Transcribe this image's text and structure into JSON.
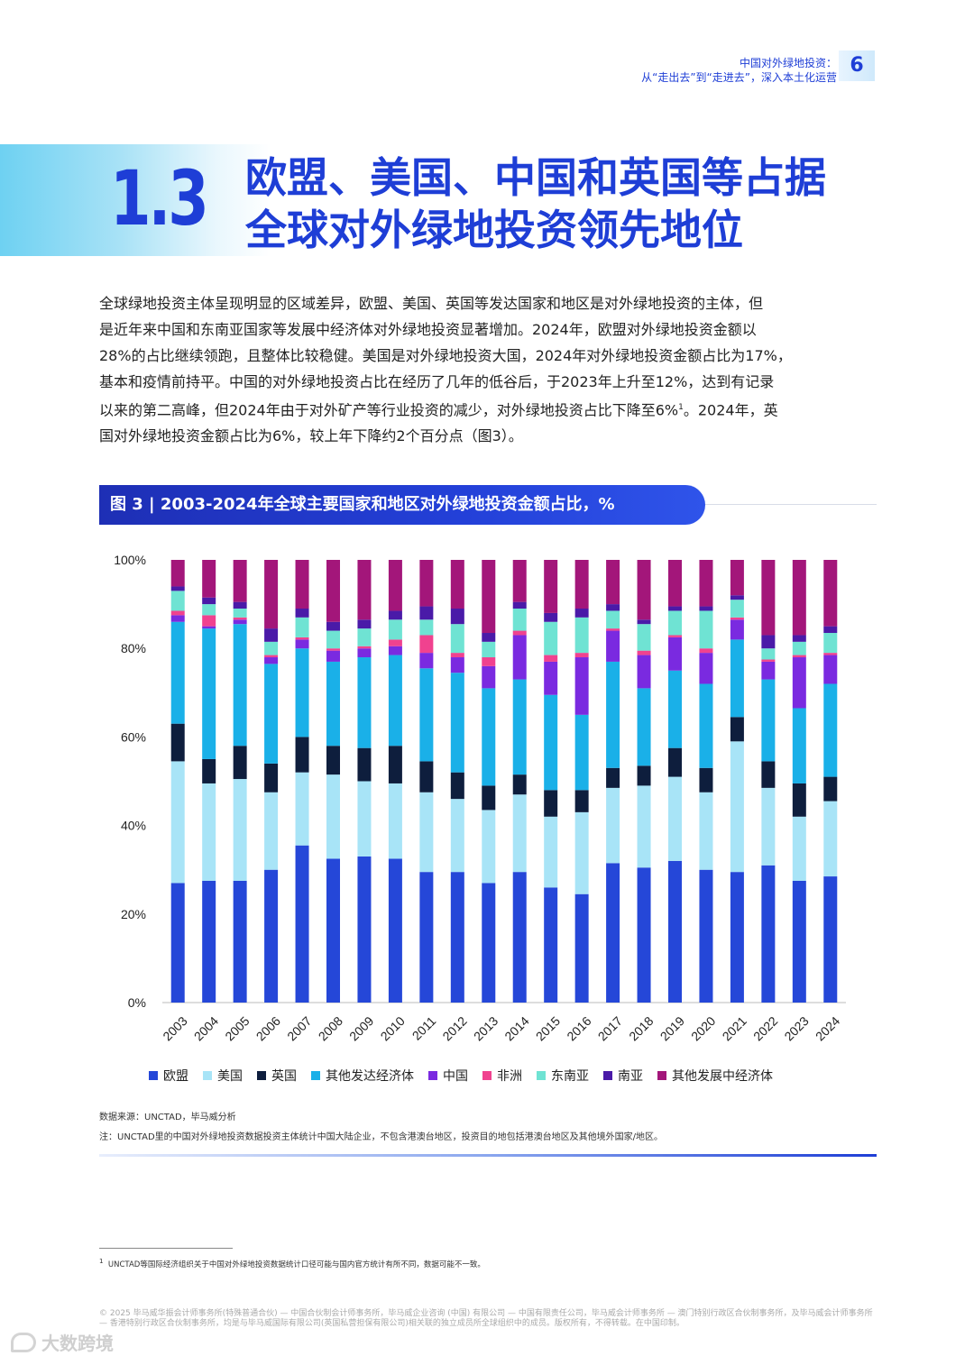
{
  "header": {
    "line1": "中国对外绿地投资：",
    "line2": "从“走出去”到“走进去”，深入本土化运营",
    "page_number": "6"
  },
  "section": {
    "number": "1.3",
    "title_line1": "欧盟、美国、中国和英国等占据",
    "title_line2": "全球对外绿地投资领先地位"
  },
  "body": {
    "lines": [
      "全球绿地投资主体呈现明显的区域差异，欧盟、美国、英国等发达国家和地区是对外绿地投资的主体，但",
      "是近年来中国和东南亚国家等发展中经济体对外绿地投资显著增加。2024年，欧盟对外绿地投资金额以",
      "28%的占比继续领跑，且整体比较稳健。美国是对外绿地投资大国，2024年对外绿地投资金额占比为17%，",
      "基本和疫情前持平。中国的对外绿地投资占比在经历了几年的低谷后，于2023年上升至12%，达到有记录",
      "以来的第二高峰，但2024年由于对外矿产等行业投资的减少，对外绿地投资占比下降至6%",
      "。2024年，英",
      "国对外绿地投资金额占比为6%，较上年下降约2个百分点（图3）。"
    ],
    "footnote_ref": "1"
  },
  "figure": {
    "label": "图 3 | 2003-2024年全球主要国家和地区对外绿地投资金额占比，%"
  },
  "chart_data": {
    "type": "bar",
    "stacked": true,
    "title": "2003-2024年全球主要国家和地区对外绿地投资金额占比，%",
    "xlabel": "",
    "ylabel": "",
    "ylim": [
      0,
      100
    ],
    "y_ticks": [
      "0%",
      "20%",
      "40%",
      "60%",
      "80%",
      "100%"
    ],
    "categories": [
      "2003",
      "2004",
      "2005",
      "2006",
      "2007",
      "2008",
      "2009",
      "2010",
      "2011",
      "2012",
      "2013",
      "2014",
      "2015",
      "2016",
      "2017",
      "2018",
      "2019",
      "2020",
      "2021",
      "2022",
      "2023",
      "2024"
    ],
    "series": [
      {
        "name": "欧盟",
        "color": "#2547d8",
        "values": [
          27,
          27.5,
          27.5,
          30,
          35.5,
          32.5,
          33,
          32.5,
          29.5,
          29.5,
          27,
          29.5,
          26,
          24.5,
          31.5,
          30.5,
          32,
          30,
          29.5,
          31,
          27.5,
          28.5
        ]
      },
      {
        "name": "美国",
        "color": "#a8e4f7",
        "values": [
          27.5,
          22,
          23,
          17.5,
          16.5,
          19,
          17,
          17,
          18,
          16.5,
          16.5,
          17.5,
          16,
          18.5,
          17,
          18.5,
          19,
          17.5,
          29.5,
          17.5,
          14.5,
          17
        ]
      },
      {
        "name": "英国",
        "color": "#0e1e3d",
        "values": [
          8.5,
          5.5,
          7.5,
          6.5,
          8,
          6.5,
          7.5,
          8.5,
          7,
          6,
          5.5,
          4.5,
          6,
          5,
          4.5,
          4.5,
          6.5,
          5.5,
          5.5,
          6,
          7.5,
          5.5
        ]
      },
      {
        "name": "其他发达经济体",
        "color": "#1ab0e8",
        "values": [
          23,
          29.5,
          27.5,
          22.5,
          20,
          19,
          20.5,
          20.5,
          21,
          22.5,
          22,
          21.5,
          21.5,
          17,
          24,
          17.5,
          17.5,
          19,
          17.5,
          18.5,
          17,
          21
        ]
      },
      {
        "name": "中国",
        "color": "#7a2ae0",
        "values": [
          1.5,
          0.5,
          1,
          1.5,
          2,
          2.5,
          2,
          2,
          3.5,
          3.5,
          5,
          10,
          7.5,
          13,
          7,
          7.5,
          7.5,
          7,
          4.5,
          4,
          11.5,
          6.5
        ]
      },
      {
        "name": "非洲",
        "color": "#f0428f",
        "values": [
          1,
          2.5,
          0.5,
          0.5,
          0.5,
          0.5,
          0.5,
          1.5,
          4,
          1,
          2,
          1,
          1.5,
          1,
          0.5,
          1,
          0.5,
          1,
          0.5,
          0.5,
          0.5,
          0.5
        ]
      },
      {
        "name": "东南亚",
        "color": "#6fe3d3",
        "values": [
          4.5,
          2.5,
          2,
          3,
          4.5,
          4,
          4,
          4.5,
          3.5,
          6.5,
          3.5,
          5,
          7.5,
          8,
          4,
          6,
          5.5,
          8.5,
          4,
          2.5,
          3,
          4.5
        ]
      },
      {
        "name": "南亚",
        "color": "#4a1aa8",
        "values": [
          1,
          1.5,
          1.5,
          3,
          2,
          2,
          2,
          2,
          3,
          3.5,
          2,
          1.5,
          2,
          2,
          1.5,
          1,
          1,
          1,
          1,
          3,
          1.5,
          1.5
        ]
      },
      {
        "name": "其他发展中经济体",
        "color": "#a3167a",
        "values": [
          6,
          8.5,
          9.5,
          15.5,
          11,
          14,
          13.5,
          11.5,
          10.5,
          11,
          16.5,
          9.5,
          12,
          11,
          10,
          13.5,
          10.5,
          10.5,
          8,
          17,
          17,
          15
        ]
      }
    ]
  },
  "sources": {
    "source": "数据来源：UNCTAD，毕马威分析",
    "note": "注：UNCTAD里的中国对外绿地投资数据投资主体统计中国大陆企业，不包含港澳台地区，投资目的地包括港澳台地区及其他境外国家/地区。"
  },
  "footnote": {
    "number": "1",
    "text": "UNCTAD等国际经济组织关于中国对外绿地投资数据统计口径可能与国内官方统计有所不同，数据可能不一致。"
  },
  "copyright": "© 2025 毕马威华振会计师事务所(特殊普通合伙) — 中国合伙制会计师事务所，毕马威企业咨询 (中国) 有限公司 — 中国有限责任公司，毕马威会计师事务所 — 澳门特别行政区合伙制事务所，及毕马威会计师事务所 — 香港特别行政区合伙制事务所，均是与毕马威国际有限公司(英国私营担保有限公司)相关联的独立成员所全球组织中的成员。版权所有，不得转载。在中国印制。",
  "watermark": "大数跨境"
}
